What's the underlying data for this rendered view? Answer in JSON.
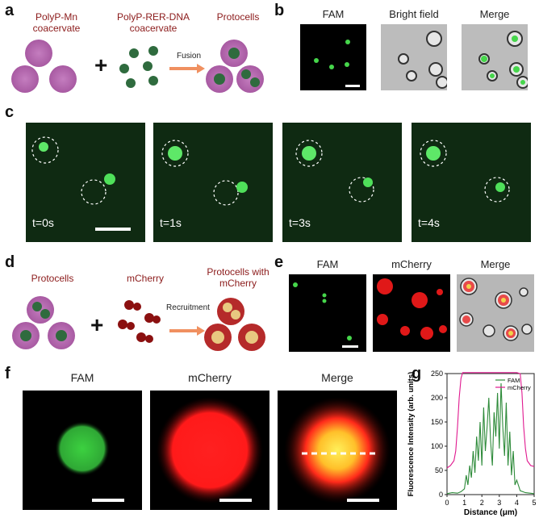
{
  "panels": {
    "a": {
      "letter": "a",
      "left_title": "PolyP-Mn coacervate",
      "mid_title": "PolyP-RER-DNA coacervate",
      "right_title": "Protocells",
      "arrow_label": "Fusion",
      "plus": "+"
    },
    "b": {
      "letter": "b",
      "titles": [
        "FAM",
        "Bright field",
        "Merge"
      ]
    },
    "c": {
      "letter": "c",
      "times": [
        "t=0s",
        "t=1s",
        "t=3s",
        "t=4s"
      ]
    },
    "d": {
      "letter": "d",
      "left_title": "Protocells",
      "mid_title": "mCherry",
      "right_title": "Protocells with mCherry",
      "arrow_label": "Recruitment",
      "plus": "+"
    },
    "e": {
      "letter": "e",
      "titles": [
        "FAM",
        "mCherry",
        "Merge"
      ]
    },
    "f": {
      "letter": "f",
      "titles": [
        "FAM",
        "mCherry",
        "Merge"
      ]
    },
    "g": {
      "letter": "g"
    }
  },
  "colors": {
    "coacervate_pink": "#b86bb3",
    "dna_green": "#2f6b3e",
    "red": "#d92a2a",
    "yellow": "#e8c45a",
    "fam_green": "#46d64b",
    "mcherry_line": "#e0198f"
  },
  "chart_data": {
    "type": "line",
    "title": "",
    "xlabel": "Distance (μm)",
    "ylabel": "Fluorescence Intensity (arb. units)",
    "xlim": [
      0,
      5
    ],
    "ylim": [
      0,
      250
    ],
    "xticks": [
      "0",
      "1",
      "2",
      "3",
      "4",
      "5"
    ],
    "yticks": [
      "0",
      "50",
      "100",
      "150",
      "200",
      "250"
    ],
    "legend": "top-right",
    "series": [
      {
        "name": "FAM",
        "color": "#2e8b3a",
        "x": [
          0,
          0.3,
          0.6,
          0.8,
          1.0,
          1.1,
          1.2,
          1.3,
          1.4,
          1.5,
          1.6,
          1.7,
          1.8,
          1.9,
          2.0,
          2.1,
          2.2,
          2.3,
          2.4,
          2.5,
          2.6,
          2.7,
          2.8,
          2.9,
          3.0,
          3.1,
          3.2,
          3.3,
          3.4,
          3.5,
          3.6,
          3.7,
          3.8,
          3.9,
          4.0,
          4.2,
          4.5,
          5.0
        ],
        "y": [
          2,
          4,
          3,
          6,
          12,
          40,
          20,
          60,
          35,
          90,
          45,
          120,
          70,
          150,
          60,
          180,
          90,
          140,
          200,
          110,
          60,
          170,
          120,
          210,
          95,
          230,
          140,
          80,
          190,
          60,
          130,
          40,
          90,
          20,
          30,
          8,
          4,
          2
        ]
      },
      {
        "name": "mCherry",
        "color": "#e0198f",
        "x": [
          0,
          0.2,
          0.4,
          0.5,
          0.6,
          0.7,
          0.8,
          0.9,
          1.0,
          1.2,
          1.5,
          2.0,
          2.5,
          3.0,
          3.5,
          4.0,
          4.2,
          4.3,
          4.4,
          4.5,
          4.6,
          4.8,
          5.0
        ],
        "y": [
          55,
          60,
          70,
          90,
          140,
          200,
          240,
          252,
          252,
          252,
          252,
          252,
          252,
          252,
          252,
          252,
          250,
          210,
          140,
          95,
          70,
          60,
          58
        ]
      }
    ]
  }
}
